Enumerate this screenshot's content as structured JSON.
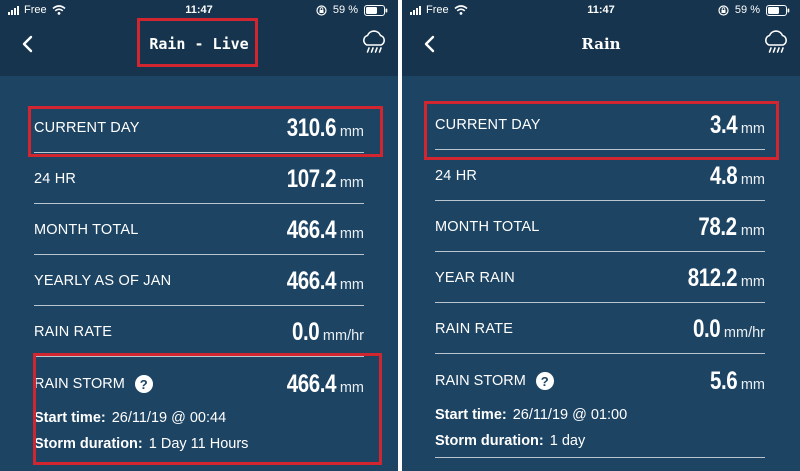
{
  "status": {
    "carrier": "Free",
    "time": "11:47",
    "battery": "59 %"
  },
  "left": {
    "title": "Rain - Live",
    "rows": [
      {
        "label": "CURRENT DAY",
        "value": "310.6",
        "unit": "mm"
      },
      {
        "label": "24 HR",
        "value": "107.2",
        "unit": "mm"
      },
      {
        "label": "MONTH TOTAL",
        "value": "466.4",
        "unit": "mm"
      },
      {
        "label": "YEARLY AS OF JAN",
        "value": "466.4",
        "unit": "mm"
      },
      {
        "label": "RAIN RATE",
        "value": "0.0",
        "unit": "mm/hr"
      }
    ],
    "storm": {
      "label": "RAIN STORM",
      "value": "466.4",
      "unit": "mm",
      "start_label": "Start time:",
      "start_value": "26/11/19 @ 00:44",
      "duration_label": "Storm duration:",
      "duration_value": "1 Day 11 Hours"
    }
  },
  "right": {
    "title": "Rain",
    "rows": [
      {
        "label": "CURRENT DAY",
        "value": "3.4",
        "unit": "mm"
      },
      {
        "label": "24 HR",
        "value": "4.8",
        "unit": "mm"
      },
      {
        "label": "MONTH TOTAL",
        "value": "78.2",
        "unit": "mm"
      },
      {
        "label": "YEAR RAIN",
        "value": "812.2",
        "unit": "mm"
      },
      {
        "label": "RAIN RATE",
        "value": "0.0",
        "unit": "mm/hr"
      }
    ],
    "storm": {
      "label": "RAIN STORM",
      "value": "5.6",
      "unit": "mm",
      "start_label": "Start time:",
      "start_value": "26/11/19 @ 01:00",
      "duration_label": "Storm duration:",
      "duration_value": "1 day"
    }
  },
  "help_glyph": "?",
  "colors": {
    "background": "#1d4463",
    "header": "#16344d",
    "highlight": "#d1262f"
  }
}
